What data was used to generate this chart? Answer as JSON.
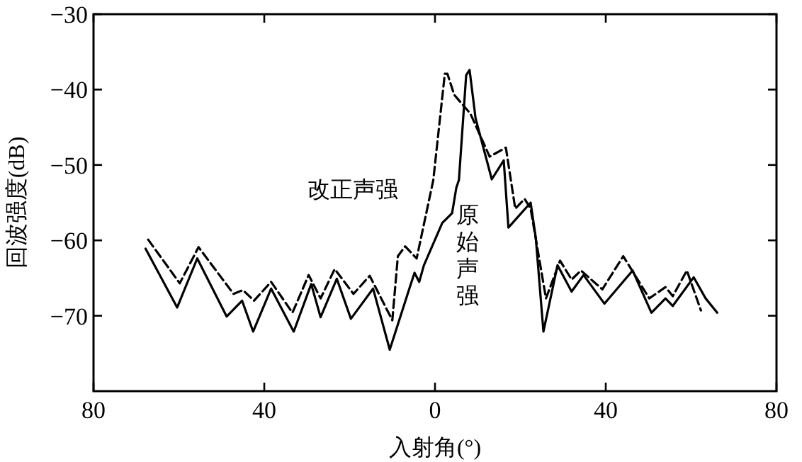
{
  "chart_data": {
    "type": "line",
    "xlabel": "入射角(°)",
    "ylabel": "回波强度(dB)",
    "xlim": [
      -80,
      80
    ],
    "xticks": [
      {
        "value": -80,
        "label": "80"
      },
      {
        "value": -40,
        "label": "40"
      },
      0,
      40,
      80
    ],
    "ylim": [
      -80,
      -30
    ],
    "yticks": [
      -30,
      -40,
      -50,
      -60,
      -70
    ],
    "grid": false,
    "legend": false,
    "series": [
      {
        "name": "改正声强",
        "color": "#000000",
        "line_style": "dashed",
        "x": [
          -67.2,
          -59.8,
          -55.4,
          -47.2,
          -45.0,
          -42.4,
          -38.4,
          -33.4,
          -29.6,
          -26.8,
          -23.5,
          -19.1,
          -15.3,
          -10.0,
          -8.7,
          -7.0,
          -4.3,
          -0.4,
          2.3,
          2.9,
          4.5,
          8.3,
          12.8,
          16.6,
          18.8,
          21.0,
          22.4,
          26.0,
          29.3,
          32.0,
          34.2,
          39.2,
          44.1,
          50.2,
          54.0,
          55.7,
          59.0,
          62.3
        ],
        "values": [
          -59.9,
          -65.7,
          -60.9,
          -67.1,
          -66.6,
          -68.0,
          -65.5,
          -69.6,
          -64.6,
          -67.7,
          -63.8,
          -67.1,
          -64.7,
          -70.6,
          -62.1,
          -60.8,
          -62.4,
          -52.0,
          -37.9,
          -37.9,
          -40.7,
          -43.2,
          -48.9,
          -47.7,
          -55.8,
          -54.5,
          -55.8,
          -67.7,
          -62.7,
          -65.2,
          -64.0,
          -66.5,
          -62.1,
          -67.7,
          -66.2,
          -67.4,
          -64.0,
          -69.3
        ]
      },
      {
        "name": "原始声强",
        "color": "#000000",
        "line_style": "solid",
        "x": [
          -67.8,
          -60.4,
          -55.7,
          -48.8,
          -45.2,
          -42.6,
          -38.4,
          -33.1,
          -29.0,
          -26.8,
          -23.0,
          -19.7,
          -14.5,
          -10.6,
          -5.9,
          -4.8,
          -3.7,
          -2.6,
          1.7,
          4.0,
          5.0,
          5.6,
          7.3,
          8.1,
          9.5,
          13.3,
          16.1,
          17.2,
          22.4,
          23.6,
          25.4,
          28.7,
          32.0,
          34.8,
          39.7,
          46.3,
          50.7,
          54.0,
          55.7,
          60.6,
          63.4,
          66.1
        ],
        "values": [
          -61.1,
          -68.9,
          -62.4,
          -70.1,
          -68.0,
          -72.1,
          -66.4,
          -72.1,
          -65.8,
          -70.2,
          -65.1,
          -70.4,
          -66.4,
          -74.5,
          -66.2,
          -64.3,
          -65.5,
          -63.3,
          -57.7,
          -56.4,
          -53.0,
          -52.0,
          -38.1,
          -37.4,
          -43.8,
          -51.9,
          -49.4,
          -58.3,
          -55.0,
          -59.6,
          -72.1,
          -63.3,
          -66.8,
          -64.6,
          -68.4,
          -64.0,
          -69.6,
          -67.7,
          -68.7,
          -64.9,
          -67.7,
          -69.6
        ]
      }
    ]
  }
}
